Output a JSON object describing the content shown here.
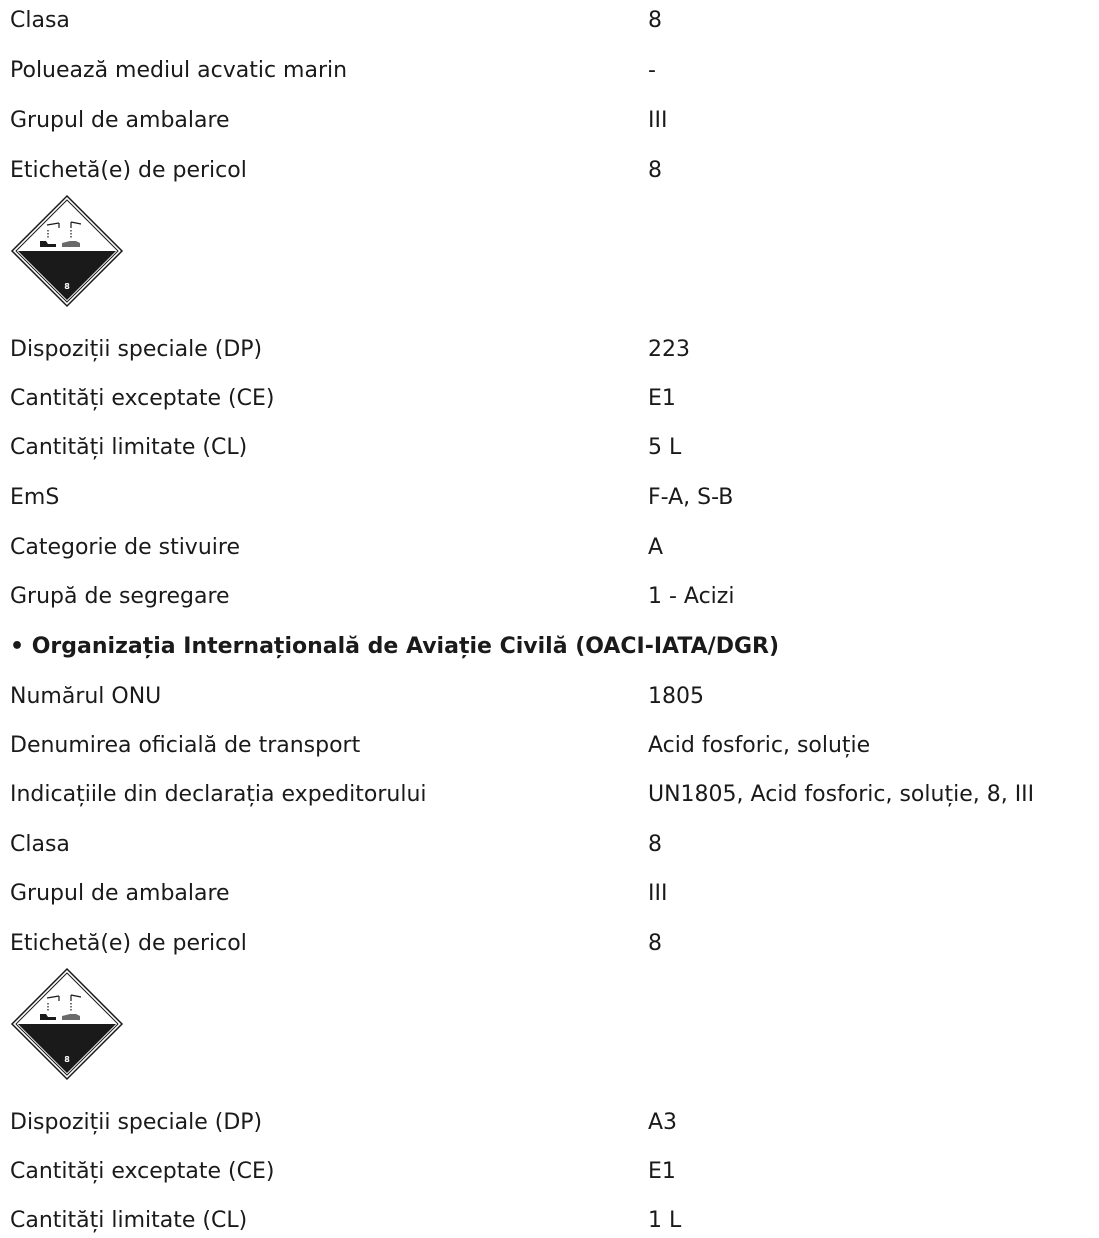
{
  "section_sea": {
    "rows": [
      {
        "label": "Clasa",
        "value": "8"
      },
      {
        "label": "Poluează mediul acvatic marin",
        "value": "-"
      },
      {
        "label": "Grupul de ambalare",
        "value": "III"
      },
      {
        "label": "Etichetă(e) de pericol",
        "value": "8"
      }
    ],
    "hazard_label": {
      "icon": "corrosive-class-8-icon",
      "number": "8"
    },
    "rows2": [
      {
        "label": "Dispoziții speciale (DP)",
        "value": "223"
      },
      {
        "label": "Cantități exceptate (CE)",
        "value": "E1"
      },
      {
        "label": "Cantități limitate (CL)",
        "value": "5 L"
      },
      {
        "label": "EmS",
        "value": "F-A, S-B"
      },
      {
        "label": "Categorie de stivuire",
        "value": "A"
      },
      {
        "label": "Grupă de segregare",
        "value": "1 - Acizi"
      }
    ]
  },
  "section_air": {
    "heading": "• Organizația Internațională de Aviație Civilă (OACI-IATA/DGR)",
    "rows": [
      {
        "label": "Numărul ONU",
        "value": "1805"
      },
      {
        "label": "Denumirea oficială de transport",
        "value": "Acid fosforic, soluție"
      },
      {
        "label": "Indicațiile din declarația expeditorului",
        "value": "UN1805, Acid fosforic, soluție, 8, III"
      },
      {
        "label": "Clasa",
        "value": "8"
      },
      {
        "label": "Grupul de ambalare",
        "value": "III"
      },
      {
        "label": "Etichetă(e) de pericol",
        "value": "8"
      }
    ],
    "hazard_label": {
      "icon": "corrosive-class-8-icon",
      "number": "8"
    },
    "rows2": [
      {
        "label": "Dispoziții speciale (DP)",
        "value": "A3"
      },
      {
        "label": "Cantități exceptate (CE)",
        "value": "E1"
      },
      {
        "label": "Cantități limitate (CL)",
        "value": "1 L"
      }
    ]
  }
}
